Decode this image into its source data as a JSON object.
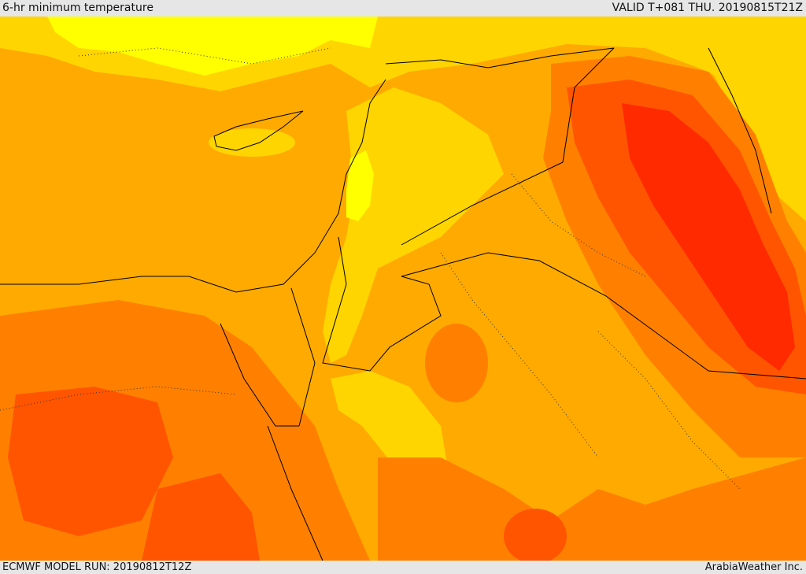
{
  "header": {
    "title": "6-hr minimum temperature",
    "valid": "VALID T+081 THU. 20190815T21Z"
  },
  "footer": {
    "model_run": "ECMWF MODEL RUN: 20190812T12Z",
    "credit": "ArabiaWeather Inc."
  },
  "colors": {
    "very_hot": "#ff2a00",
    "hot": "#ff5500",
    "warm": "#ff8000",
    "mild_warm": "#ffaa00",
    "mild": "#ffd500",
    "cool": "#ffff00",
    "sea": "#ffaa00",
    "border": "#000000"
  }
}
